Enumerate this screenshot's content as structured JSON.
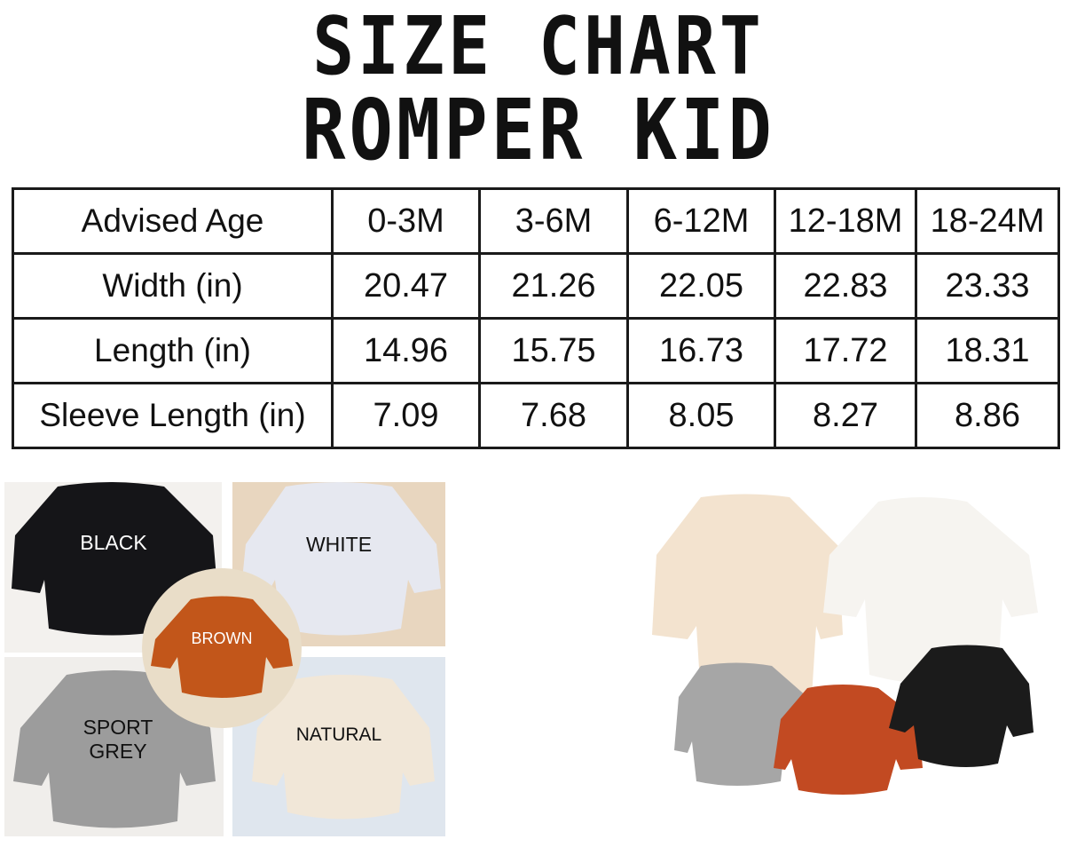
{
  "title": {
    "line1": "SIZE CHART",
    "line2": "ROMPER KID"
  },
  "table": {
    "header": [
      "Advised Age",
      "0-3M",
      "3-6M",
      "6-12M",
      "12-18M",
      "18-24M"
    ],
    "rows": [
      [
        "Width (in)",
        "20.47",
        "21.26",
        "22.05",
        "22.83",
        "23.33"
      ],
      [
        "Length (in)",
        "14.96",
        "15.75",
        "16.73",
        "17.72",
        "18.31"
      ],
      [
        "Sleeve Length (in)",
        "7.09",
        "7.68",
        "8.05",
        "8.27",
        "8.86"
      ]
    ]
  },
  "colors": {
    "labels": [
      "BLACK",
      "WHITE",
      "BROWN",
      "SPORT GREY",
      "NATURAL"
    ],
    "black": "#151518",
    "white": "#e6e8f0",
    "brown": "#c2561a",
    "grey": "#9c9c9c",
    "natural": "#f1e7d8"
  }
}
